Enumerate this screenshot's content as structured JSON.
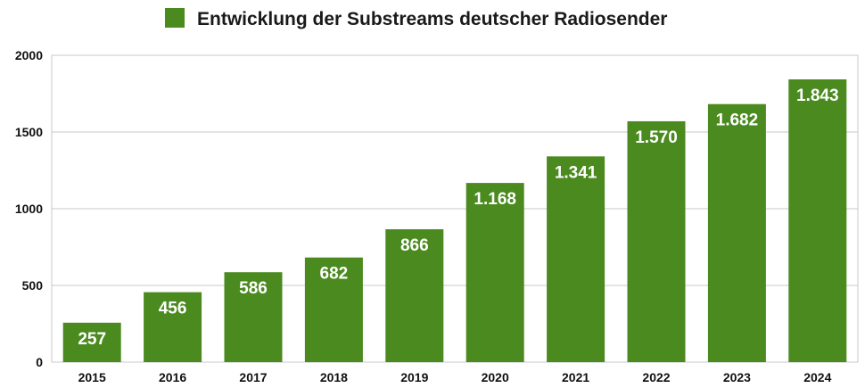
{
  "chart_data": {
    "type": "bar",
    "categories": [
      "2015",
      "2016",
      "2017",
      "2018",
      "2019",
      "2020",
      "2021",
      "2022",
      "2023",
      "2024"
    ],
    "series": [
      {
        "name": "Entwicklung der Substreams deutscher Radiosender",
        "values": [
          257,
          456,
          586,
          682,
          866,
          1168,
          1341,
          1570,
          1682,
          1843
        ],
        "labels": [
          "257",
          "456",
          "586",
          "682",
          "866",
          "1.168",
          "1.341",
          "1.570",
          "1.682",
          "1.843"
        ],
        "color": "#4a8a1f"
      }
    ],
    "ylim": [
      0,
      2000
    ],
    "yticks": [
      0,
      500,
      1000,
      1500,
      2000
    ],
    "ytick_labels": [
      "0",
      "500",
      "1000",
      "1500",
      "2000"
    ],
    "grid": true,
    "legend_position": "top-center",
    "xlabel": "",
    "ylabel": ""
  }
}
